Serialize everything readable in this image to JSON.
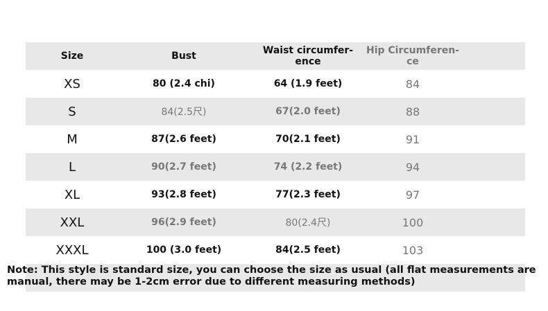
{
  "table": {
    "header": [
      [
        "Size"
      ],
      [
        "Bust"
      ],
      [
        "Waist circumfer-",
        "ence"
      ],
      [
        "Hip Circumferen-",
        "ce"
      ]
    ],
    "rows": [
      [
        "XS",
        "80 (2.4 chi)",
        "64 (1.9 feet)",
        "84"
      ],
      [
        "S",
        "84(2.5尺)",
        "67(2.0 feet)",
        "88"
      ],
      [
        "M",
        "87(2.6 feet)",
        "70(2.1 feet)",
        "91"
      ],
      [
        "L",
        "90(2.7 feet)",
        "74 (2.2 feet)",
        "94"
      ],
      [
        "XL",
        "93(2.8 feet)",
        "77(2.3 feet)",
        "97"
      ],
      [
        "XXL",
        "96(2.9 feet)",
        "80(2.4尺)",
        "100"
      ],
      [
        "XXXL",
        "100 (3.0 feet)",
        "84(2.5 feet)",
        "103"
      ]
    ],
    "note": "Note: This style is standard size, you can choose the size as usual (all flat measurements are manual, there may be 1-2cm error due to different measuring methods)"
  }
}
